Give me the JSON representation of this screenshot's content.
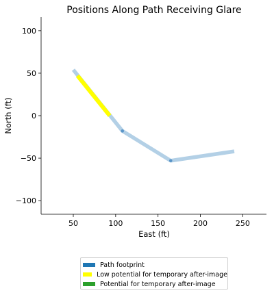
{
  "chart_data": {
    "type": "line",
    "title": "Positions Along Path Receiving Glare",
    "xlabel": "East (ft)",
    "ylabel": "North (ft)",
    "xlim": [
      12,
      278
    ],
    "ylim": [
      -116,
      116
    ],
    "xticks": [
      50,
      100,
      150,
      200,
      250
    ],
    "yticks": [
      100,
      50,
      0,
      -50,
      -100
    ],
    "grid": false,
    "legend_position": "bottom-center",
    "series": [
      {
        "name": "Path footprint",
        "color": "#b3d0e6",
        "x": [
          50,
          108,
          165,
          240
        ],
        "y": [
          54,
          -18,
          -53,
          -42
        ]
      },
      {
        "name": "Low potential for temporary after-image",
        "color": "#ffff00",
        "x": [
          55,
          93
        ],
        "y": [
          47,
          0
        ]
      }
    ],
    "vertices": {
      "color": "#5a95c8",
      "x": [
        108,
        165
      ],
      "y": [
        -18,
        -53
      ]
    },
    "legend": [
      {
        "label": "Path footprint",
        "color": "#1f77b4"
      },
      {
        "label": "Low potential for temporary after-image",
        "color": "#ffff00"
      },
      {
        "label": "Potential for temporary after-image",
        "color": "#2ca02c"
      }
    ]
  }
}
